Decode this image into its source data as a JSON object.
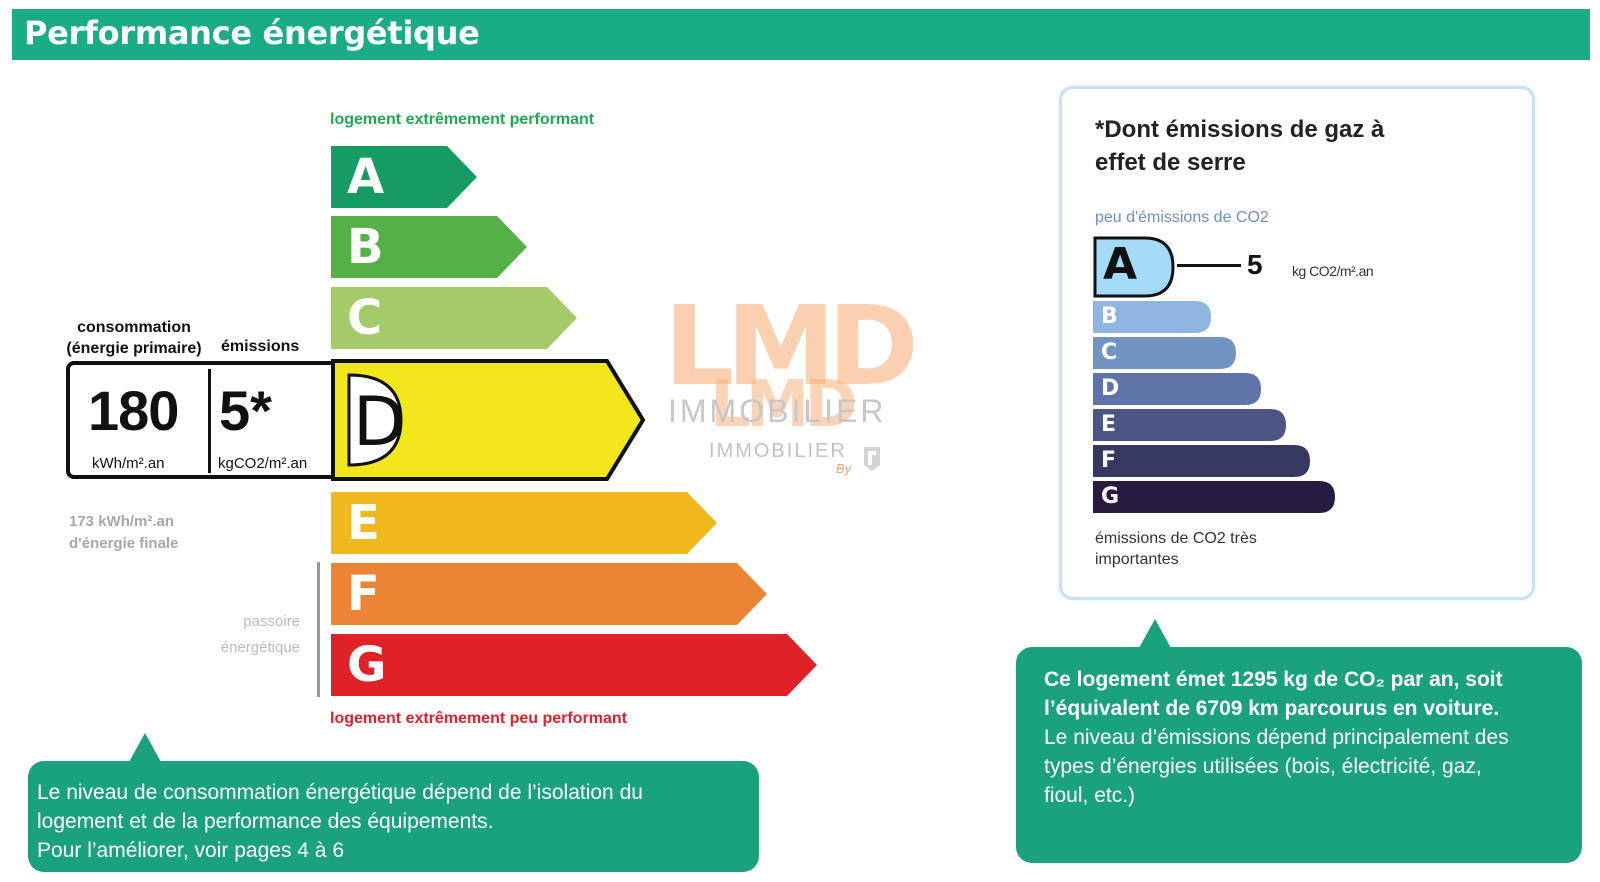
{
  "header": {
    "title": "Performance énergétique"
  },
  "dpe": {
    "top_caption": "logement extrêmement performant",
    "bottom_caption": "logement extrêmement peu performant",
    "classes": [
      {
        "letter": "A",
        "color": "#169b62"
      },
      {
        "letter": "B",
        "color": "#55b047"
      },
      {
        "letter": "C",
        "color": "#a4cb67"
      },
      {
        "letter": "D",
        "color": "#f2e61d"
      },
      {
        "letter": "E",
        "color": "#efb81d"
      },
      {
        "letter": "F",
        "color": "#ec8436"
      },
      {
        "letter": "G",
        "color": "#df2228"
      }
    ],
    "current_class": "D",
    "consumption_label": "consommation (énergie primaire)",
    "consumption_value": "180",
    "consumption_unit": "kWh/m².an",
    "emissions_label": "émissions",
    "emissions_value": "5*",
    "emissions_unit": "kgCO2/m².an",
    "final_energy_line1": "173 kWh/m².an",
    "final_energy_line2": "d'énergie finale",
    "passoire_label": "passoire énergétique"
  },
  "watermark": {
    "logo_big": "LMD",
    "logo_small": "LMD",
    "text1": "IMMOBILIER",
    "text2": "IMMOBILIER",
    "by": "By"
  },
  "bubble_left": {
    "line1": "Le niveau de consommation énergétique dépend de l’isolation du",
    "line2": "logement et de la performance des équipements.",
    "line3": "Pour l’améliorer, voir pages 4 à 6"
  },
  "ges": {
    "title": "*Dont émissions de gaz à effet de serre",
    "top_caption": "peu d'émissions de CO2",
    "bottom_caption": "émissions de CO2 très importantes",
    "current_class": "A",
    "value": "5",
    "unit": "kg CO2/m².an",
    "classes": [
      {
        "letter": "A",
        "color": "#a4dbf8"
      },
      {
        "letter": "B",
        "color": "#8fb6e0"
      },
      {
        "letter": "C",
        "color": "#7294c2"
      },
      {
        "letter": "D",
        "color": "#5e74a8"
      },
      {
        "letter": "E",
        "color": "#4a5584"
      },
      {
        "letter": "F",
        "color": "#37385f"
      },
      {
        "letter": "G",
        "color": "#271b3f"
      }
    ]
  },
  "bubble_right": {
    "bold_line1": "Ce logement émet 1295 kg de CO₂ par an, soit",
    "bold_line2": "l’équivalent de 6709  km parcourus en voiture.",
    "line3": "Le niveau d’émissions dépend principalement des",
    "line4": "types d’énergies utilisées (bois, électricité, gaz,",
    "line5": "fioul, etc.)"
  }
}
